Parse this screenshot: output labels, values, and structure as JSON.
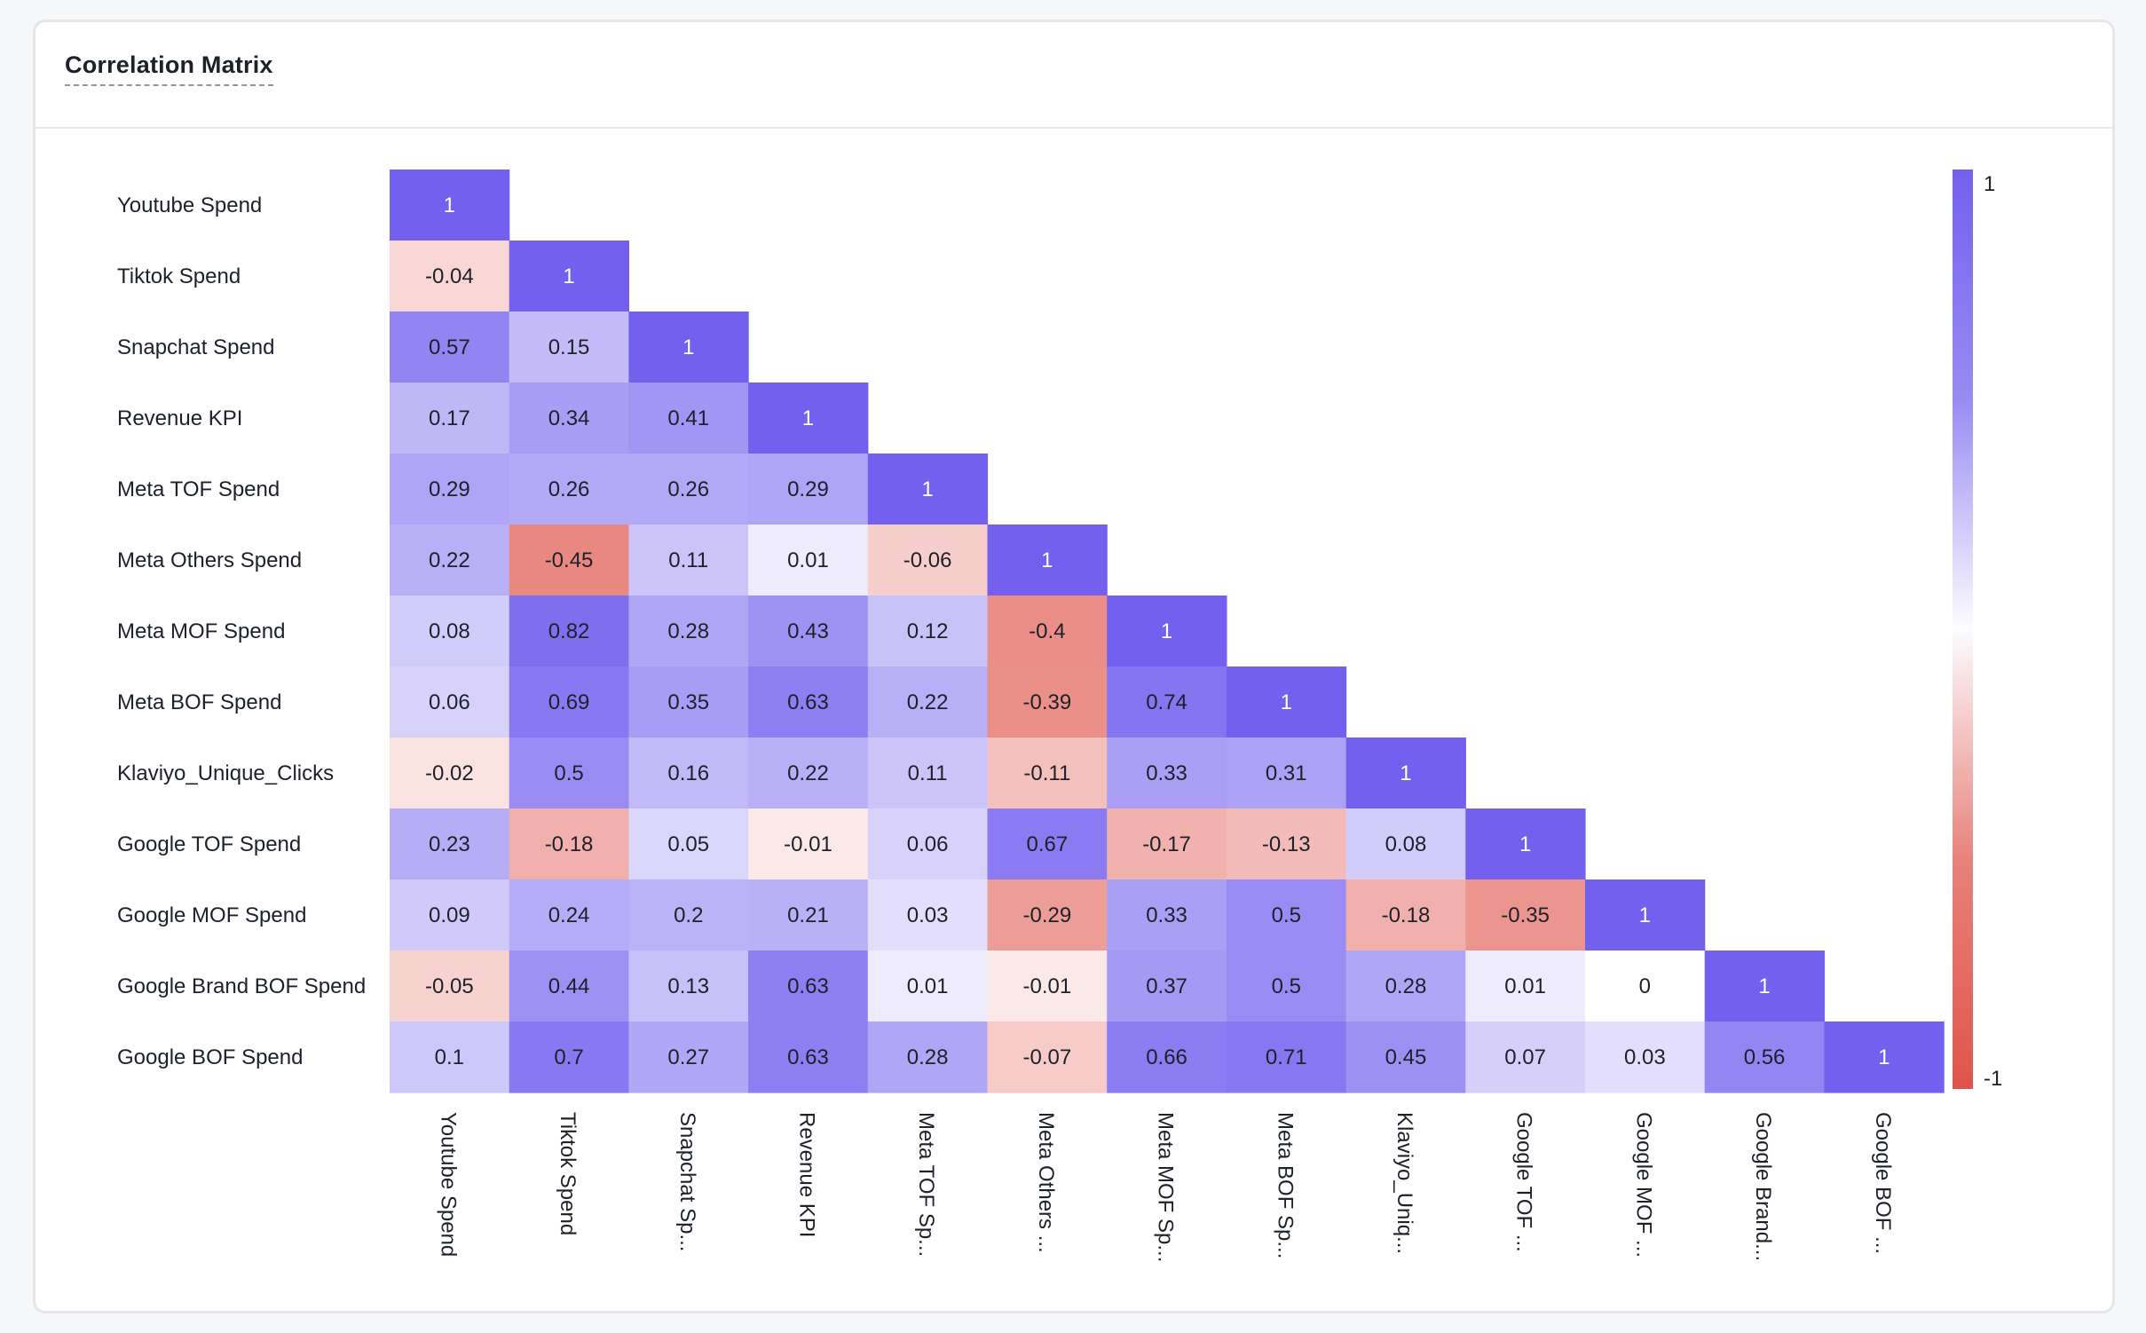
{
  "header": {
    "title": "Correlation Matrix"
  },
  "chart_data": {
    "type": "heatmap",
    "title": "Correlation Matrix",
    "rows": [
      "Youtube Spend",
      "Tiktok Spend",
      "Snapchat Spend",
      "Revenue KPI",
      "Meta TOF Spend",
      "Meta Others Spend",
      "Meta MOF Spend",
      "Meta BOF Spend",
      "Klaviyo_Unique_Clicks",
      "Google TOF Spend",
      "Google MOF Spend",
      "Google Brand BOF Spend",
      "Google BOF Spend"
    ],
    "columns": [
      "Youtube Spend",
      "Tiktok Spend",
      "Snapchat Sp...",
      "Revenue KPI",
      "Meta TOF Sp...",
      "Meta Others ...",
      "Meta MOF Sp...",
      "Meta BOF Sp...",
      "Klaviyo_Uniq...",
      "Google TOF ...",
      "Google MOF ...",
      "Google Brand...",
      "Google BOF ..."
    ],
    "values": [
      [
        1
      ],
      [
        -0.04,
        1
      ],
      [
        0.57,
        0.15,
        1
      ],
      [
        0.17,
        0.34,
        0.41,
        1
      ],
      [
        0.29,
        0.26,
        0.26,
        0.29,
        1
      ],
      [
        0.22,
        -0.45,
        0.11,
        0.01,
        -0.06,
        1
      ],
      [
        0.08,
        0.82,
        0.28,
        0.43,
        0.12,
        -0.4,
        1
      ],
      [
        0.06,
        0.69,
        0.35,
        0.63,
        0.22,
        -0.39,
        0.74,
        1
      ],
      [
        -0.02,
        0.5,
        0.16,
        0.22,
        0.11,
        -0.11,
        0.33,
        0.31,
        1
      ],
      [
        0.23,
        -0.18,
        0.05,
        -0.01,
        0.06,
        0.67,
        -0.17,
        -0.13,
        0.08,
        1
      ],
      [
        0.09,
        0.24,
        0.2,
        0.21,
        0.03,
        -0.29,
        0.33,
        0.5,
        -0.18,
        -0.35,
        1
      ],
      [
        -0.05,
        0.44,
        0.13,
        0.63,
        0.01,
        -0.01,
        0.37,
        0.5,
        0.28,
        0.01,
        0,
        1
      ],
      [
        0.1,
        0.7,
        0.27,
        0.63,
        0.28,
        -0.07,
        0.66,
        0.71,
        0.45,
        0.07,
        0.03,
        0.56,
        1
      ]
    ],
    "scale": {
      "min": -1,
      "max": 1,
      "min_label": "-1",
      "max_label": "1"
    },
    "colors": {
      "positive": "#7460ee",
      "neutral": "#ffffff",
      "negative": "#e0544a"
    },
    "legend": "right"
  }
}
